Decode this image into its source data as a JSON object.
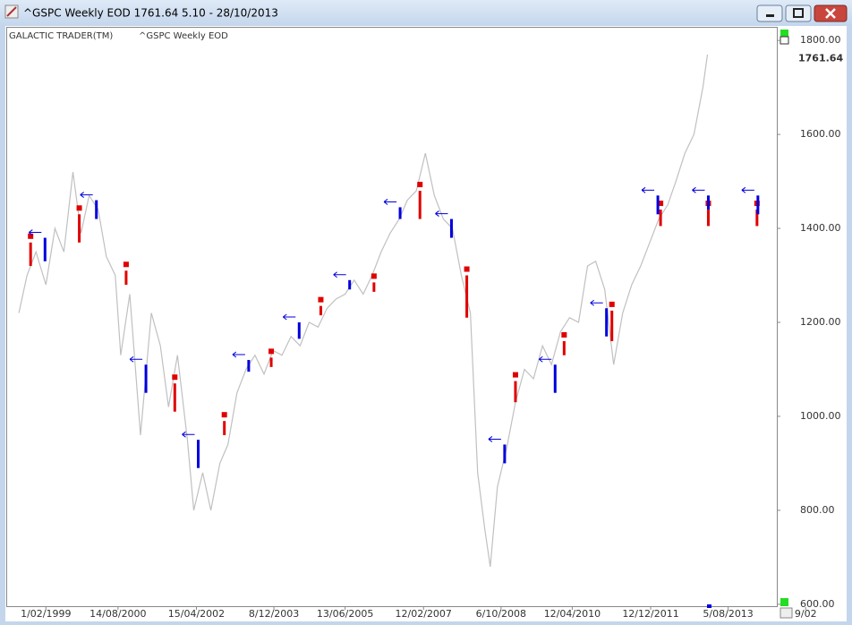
{
  "window_title": "^GSPC Weekly EOD  1761.64    5.10 - 28/10/2013",
  "chart_data": {
    "type": "line",
    "chart_label": "GALACTIC TRADER(TM)",
    "subtitle": "^GSPC Weekly EOD",
    "last_value": 1761.64,
    "xlim": [
      "6/04/1998",
      "18/08/2014"
    ],
    "xticks": [
      "1/02/1999",
      "14/08/2000",
      "15/04/2002",
      "8/12/2003",
      "13/06/2005",
      "12/02/2007",
      "6/10/2008",
      "12/04/2010",
      "12/12/2011",
      "5/08/2013",
      "9/02"
    ],
    "ylim": [
      594,
      1827
    ],
    "yticks": [
      {
        "value": 600,
        "label": "600.00"
      },
      {
        "value": 800,
        "label": "800.00"
      },
      {
        "value": 1000,
        "label": "1000.00"
      },
      {
        "value": 1200,
        "label": "1200.00"
      },
      {
        "value": 1400,
        "label": "1400.00"
      },
      {
        "value": 1600,
        "label": "1600.00"
      },
      {
        "value": 1800,
        "label": "1800.00"
      }
    ],
    "x": [
      "6/07/1998",
      "7/09/1998",
      "16/11/1998",
      "1/02/1999",
      "12/04/1999",
      "21/06/1999",
      "30/08/1999",
      "1/11/1999",
      "3/01/2000",
      "13/03/2000",
      "15/05/2000",
      "24/07/2000",
      "4/09/2000",
      "13/11/2000",
      "5/02/2001",
      "30/04/2001",
      "9/07/2001",
      "10/09/2001",
      "19/11/2001",
      "4/02/2002",
      "25/03/2002",
      "3/06/2002",
      "5/08/2002",
      "14/10/2002",
      "16/12/2002",
      "24/02/2003",
      "5/05/2003",
      "14/07/2003",
      "22/09/2003",
      "1/12/2003",
      "9/02/2004",
      "19/04/2004",
      "28/06/2004",
      "6/09/2004",
      "15/11/2004",
      "24/01/2005",
      "4/04/2005",
      "13/06/2005",
      "22/08/2005",
      "31/10/2005",
      "9/01/2006",
      "20/03/2006",
      "29/05/2006",
      "7/08/2006",
      "9/10/2006",
      "18/12/2006",
      "26/02/2007",
      "7/05/2007",
      "16/07/2007",
      "24/09/2007",
      "3/12/2007",
      "11/02/2008",
      "7/04/2008",
      "2/06/2008",
      "14/07/2008",
      "8/09/2008",
      "17/11/2008",
      "26/01/2009",
      "6/04/2009",
      "15/06/2009",
      "24/08/2009",
      "2/11/2009",
      "11/01/2010",
      "22/03/2010",
      "31/05/2010",
      "9/08/2010",
      "11/10/2010",
      "20/12/2010",
      "28/02/2011",
      "9/05/2011",
      "18/07/2011",
      "26/09/2011",
      "5/12/2011",
      "13/02/2012",
      "23/04/2012",
      "25/06/2012",
      "3/09/2012",
      "12/11/2012",
      "21/01/2013",
      "25/02/2013"
    ],
    "series": [
      {
        "color": "#c0c0c0",
        "values": [
          1220,
          1300,
          1350,
          1280,
          1400,
          1350,
          1520,
          1390,
          1470,
          1440,
          1340,
          1300,
          1130,
          1260,
          960,
          1220,
          1150,
          1020,
          1130,
          950,
          800,
          880,
          800,
          900,
          940,
          1050,
          1100,
          1130,
          1090,
          1140,
          1130,
          1170,
          1150,
          1200,
          1190,
          1230,
          1250,
          1260,
          1290,
          1260,
          1300,
          1350,
          1390,
          1420,
          1460,
          1480,
          1560,
          1470,
          1420,
          1400,
          1300,
          1220,
          880,
          760,
          680,
          850,
          930,
          1030,
          1100,
          1080,
          1150,
          1110,
          1180,
          1210,
          1200,
          1320,
          1330,
          1270,
          1110,
          1220,
          1280,
          1320,
          1370,
          1420,
          1450,
          1500,
          1560,
          1600,
          1700,
          1770
        ]
      }
    ],
    "signals": [
      {
        "color": "#e00000",
        "x": [
          "5/10/1998",
          "18/10/1999",
          "16/10/2000",
          "29/10/2001",
          "18/11/2002",
          "17/11/2003",
          "6/12/2004",
          "23/01/2006",
          "15/01/2007",
          "14/01/2008",
          "26/01/2009",
          "8/02/2010",
          "14/02/2011",
          "27/02/2012",
          "4/03/2013",
          "17/03/2014"
        ],
        "high": [
          1370,
          1430,
          1310,
          1070,
          990,
          1125,
          1235,
          1285,
          1480,
          1300,
          1075,
          1160,
          1225,
          1440,
          1440,
          1440
        ],
        "low": [
          1320,
          1370,
          1280,
          1010,
          960,
          1105,
          1215,
          1265,
          1420,
          1210,
          1030,
          1130,
          1160,
          1405,
          1405,
          1405
        ]
      },
      {
        "color": "#0000dd",
        "x": [
          "25/01/1999",
          "28/02/2000",
          "19/03/2001",
          "29/04/2002",
          "26/05/2003",
          "21/06/2004",
          "18/07/2005",
          "14/08/2006",
          "17/09/2007",
          "3/11/2008",
          "30/11/2009",
          "3/01/2011",
          "6/02/2012",
          "4/03/2013",
          "24/03/2014"
        ],
        "high": [
          1380,
          1460,
          1110,
          950,
          1120,
          1200,
          1290,
          1445,
          1420,
          940,
          1110,
          1230,
          1470,
          1470,
          1470
        ],
        "low": [
          1330,
          1420,
          1050,
          890,
          1095,
          1165,
          1270,
          1420,
          1380,
          900,
          1050,
          1170,
          1430,
          1440,
          1430
        ]
      }
    ]
  }
}
